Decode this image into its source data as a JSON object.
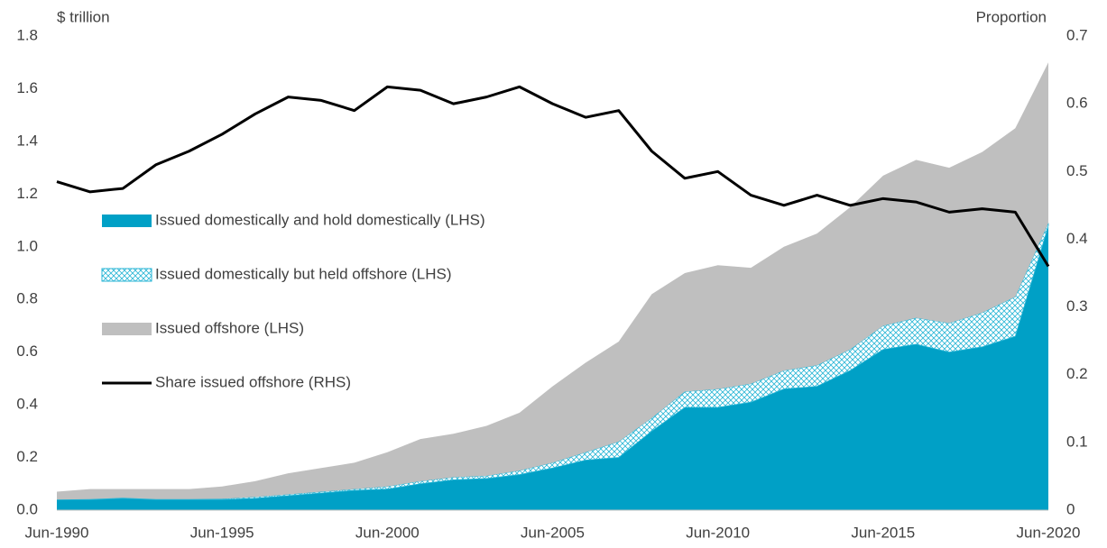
{
  "chart_data": {
    "type": "stacked-area-line",
    "y_label": "$ trillion",
    "y2_label": "Proportion",
    "categories": [
      "Jun-1990",
      null,
      null,
      null,
      null,
      "Jun-1995",
      null,
      null,
      null,
      null,
      "Jun-2000",
      null,
      null,
      null,
      null,
      "Jun-2005",
      null,
      null,
      null,
      null,
      "Jun-2010",
      null,
      null,
      null,
      null,
      "Jun-2015",
      null,
      null,
      null,
      null,
      "Jun-2020"
    ],
    "ylim": [
      0,
      1.8
    ],
    "yticks": [
      {
        "value": 0,
        "label": "0.0"
      },
      0.2,
      0.4,
      0.6,
      0.8,
      {
        "value": 1,
        "label": "1.0"
      },
      1.2,
      1.4,
      1.6,
      1.8
    ],
    "y2lim": [
      0,
      0.7
    ],
    "y2ticks": [
      0,
      0.1,
      0.2,
      0.3,
      0.4,
      0.5,
      0.6,
      0.7
    ],
    "legend": "center-left",
    "series": [
      {
        "name": "Issued domestically and hold domestically (LHS)",
        "color": "#00a0c6",
        "kind": "area",
        "values": [
          0.04,
          0.04,
          0.045,
          0.04,
          0.04,
          0.04,
          0.045,
          0.055,
          0.065,
          0.075,
          0.08,
          0.1,
          0.115,
          0.12,
          0.135,
          0.16,
          0.19,
          0.2,
          0.3,
          0.39,
          0.39,
          0.41,
          0.46,
          0.47,
          0.53,
          0.61,
          0.63,
          0.6,
          0.62,
          0.66,
          1.08
        ]
      },
      {
        "name": "Issued domestically but held offshore (LHS)",
        "color": "#29b6d6",
        "kind": "area",
        "pattern": "crosshatch",
        "values": [
          0,
          0.002,
          0.002,
          0.002,
          0.002,
          0.003,
          0.005,
          0.005,
          0.005,
          0.005,
          0.01,
          0.01,
          0.01,
          0.01,
          0.015,
          0.02,
          0.03,
          0.06,
          0.05,
          0.06,
          0.07,
          0.07,
          0.07,
          0.08,
          0.08,
          0.09,
          0.1,
          0.11,
          0.13,
          0.15,
          0.01
        ]
      },
      {
        "name": "Issued offshore (LHS)",
        "color": "#bfbfbf",
        "kind": "area",
        "values": [
          0.03,
          0.038,
          0.033,
          0.038,
          0.038,
          0.047,
          0.06,
          0.08,
          0.09,
          0.1,
          0.13,
          0.16,
          0.165,
          0.19,
          0.22,
          0.29,
          0.34,
          0.38,
          0.47,
          0.45,
          0.47,
          0.44,
          0.47,
          0.5,
          0.54,
          0.57,
          0.6,
          0.59,
          0.61,
          0.64,
          0.61
        ]
      },
      {
        "name": "Share issued offshore (RHS)",
        "color": "#000000",
        "kind": "line",
        "axis": "y2",
        "values": [
          0.485,
          0.47,
          0.475,
          0.51,
          0.53,
          0.555,
          0.585,
          0.61,
          0.605,
          0.59,
          0.625,
          0.62,
          0.6,
          0.61,
          0.625,
          0.6,
          0.58,
          0.59,
          0.53,
          0.49,
          0.5,
          0.465,
          0.45,
          0.465,
          0.45,
          0.46,
          0.455,
          0.44,
          0.445,
          0.44,
          0.36
        ]
      }
    ]
  }
}
